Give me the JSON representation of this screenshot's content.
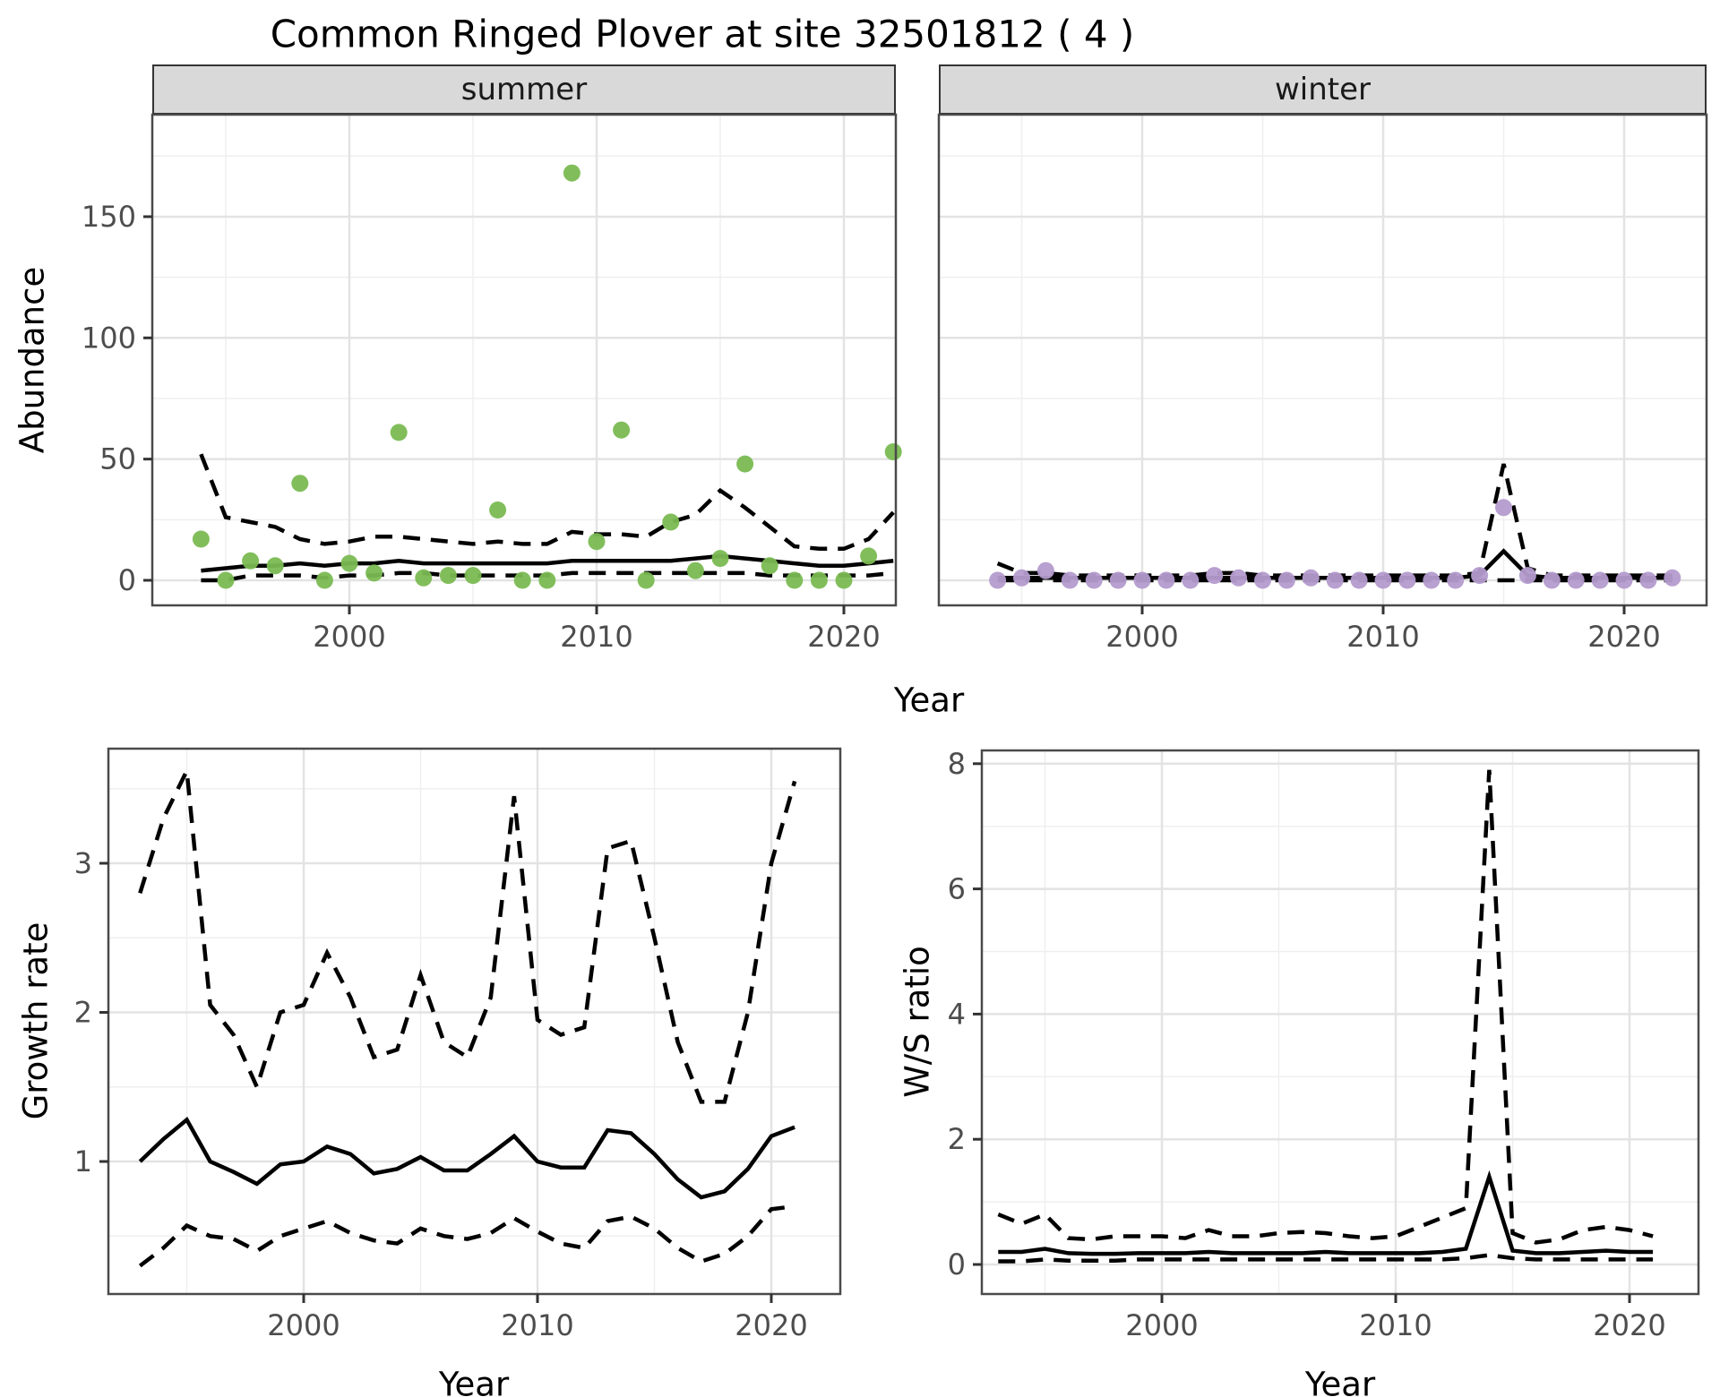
{
  "title": "Common Ringed Plover at site 32501812 ( 4 )",
  "facets": [
    {
      "label": "summer"
    },
    {
      "label": "winter"
    }
  ],
  "axis_titles": {
    "x": "Year",
    "abundance": "Abundance",
    "growth": "Growth rate",
    "ws": "W/S ratio"
  },
  "colors": {
    "summer_point": "#7aba52",
    "winter_point": "#b49bce",
    "line": "#000000",
    "strip_bg": "#d9d9d9",
    "panel_bg": "#ffffff",
    "grid_major": "#e3e3e3",
    "grid_minor": "#efefef",
    "panel_border": "#4a4a4a",
    "axis_text": "#4d4d4d",
    "tick_mark": "#333333"
  },
  "chart_data": [
    {
      "id": "abundance-summer",
      "type": "scatter",
      "facet": "summer",
      "xlabel": "Year",
      "ylabel": "Abundance",
      "x": [
        1994,
        1995,
        1996,
        1997,
        1998,
        1999,
        2000,
        2001,
        2002,
        2003,
        2004,
        2005,
        2006,
        2007,
        2008,
        2009,
        2010,
        2011,
        2012,
        2013,
        2014,
        2015,
        2016,
        2017,
        2018,
        2019,
        2020,
        2021,
        2022
      ],
      "observed": [
        17,
        0,
        8,
        6,
        40,
        0,
        7,
        3,
        61,
        1,
        2,
        2,
        29,
        0,
        0,
        168,
        16,
        62,
        0,
        24,
        4,
        9,
        48,
        6,
        0,
        0,
        0,
        10,
        53
      ],
      "fit": [
        4,
        5,
        6,
        6,
        7,
        6,
        7,
        7,
        8,
        7,
        7,
        7,
        7,
        7,
        7,
        8,
        8,
        8,
        8,
        8,
        9,
        10,
        9,
        8,
        7,
        6,
        6,
        7,
        8
      ],
      "ci_upper": [
        52,
        26,
        24,
        22,
        17,
        15,
        16,
        18,
        18,
        17,
        16,
        15,
        16,
        15,
        15,
        20,
        19,
        19,
        18,
        24,
        27,
        37,
        30,
        22,
        14,
        13,
        13,
        17,
        28
      ],
      "ci_lower": [
        0,
        0,
        2,
        2,
        2,
        1,
        2,
        2,
        3,
        3,
        2,
        2,
        2,
        2,
        2,
        3,
        3,
        3,
        3,
        3,
        3,
        3,
        3,
        2,
        2,
        2,
        2,
        2,
        3
      ],
      "xticks": [
        2000,
        2010,
        2020
      ],
      "xminor": [
        1995,
        2005,
        2015
      ],
      "yticks": [
        0,
        50,
        100,
        150
      ],
      "yminor": [
        25,
        75,
        125,
        175
      ],
      "xlim": [
        1992.0,
        2022.1
      ],
      "ylim": [
        -10.3,
        192.1
      ],
      "grid": true,
      "legend": "none",
      "point_color": "#7aba52",
      "show_y_axis": true
    },
    {
      "id": "abundance-winter",
      "type": "scatter",
      "facet": "winter",
      "xlabel": "Year",
      "ylabel": "Abundance",
      "x": [
        1994,
        1995,
        1996,
        1997,
        1998,
        1999,
        2000,
        2001,
        2002,
        2003,
        2004,
        2005,
        2006,
        2007,
        2008,
        2009,
        2010,
        2011,
        2012,
        2013,
        2014,
        2015,
        2016,
        2017,
        2018,
        2019,
        2020,
        2021,
        2022
      ],
      "observed": [
        0,
        1,
        4,
        0,
        0,
        0,
        0,
        0,
        0,
        2,
        1,
        0,
        0,
        1,
        0,
        0,
        0,
        0,
        0,
        0,
        2,
        30,
        2,
        0,
        0,
        0,
        0,
        0,
        1
      ],
      "fit": [
        1,
        1,
        1,
        1,
        1,
        1,
        1,
        1,
        1,
        1,
        1,
        1,
        1,
        1,
        1,
        1,
        1,
        1,
        1,
        1,
        2,
        12,
        2,
        1,
        1,
        1,
        1,
        1,
        1
      ],
      "ci_upper": [
        7,
        3,
        3,
        2,
        2,
        2,
        2,
        2,
        2,
        3,
        3,
        2,
        2,
        2,
        2,
        2,
        2,
        2,
        2,
        2,
        3,
        48,
        5,
        2,
        2,
        2,
        2,
        2,
        2
      ],
      "ci_lower": [
        0,
        0,
        0,
        0,
        0,
        0,
        0,
        0,
        0,
        0,
        0,
        0,
        0,
        0,
        0,
        0,
        0,
        0,
        0,
        0,
        0,
        0,
        0,
        0,
        0,
        0,
        0,
        0,
        0
      ],
      "xticks": [
        2000,
        2010,
        2020
      ],
      "xminor": [
        1995,
        2005,
        2015
      ],
      "yticks": [
        0,
        50,
        100,
        150
      ],
      "yminor": [
        25,
        75,
        125,
        175
      ],
      "xlim": [
        1991.6,
        2023.4
      ],
      "ylim": [
        -10.3,
        192.1
      ],
      "grid": true,
      "legend": "none",
      "point_color": "#b49bce",
      "show_y_axis": false
    },
    {
      "id": "growth-rate",
      "type": "line",
      "facet": null,
      "xlabel": "Year",
      "ylabel": "Growth rate",
      "x": [
        1993,
        1994,
        1995,
        1996,
        1997,
        1998,
        1999,
        2000,
        2001,
        2002,
        2003,
        2004,
        2005,
        2006,
        2007,
        2008,
        2009,
        2010,
        2011,
        2012,
        2013,
        2014,
        2015,
        2016,
        2017,
        2018,
        2019,
        2020,
        2021
      ],
      "fit": [
        1.0,
        1.15,
        1.28,
        1.0,
        0.93,
        0.85,
        0.98,
        1.0,
        1.1,
        1.05,
        0.92,
        0.95,
        1.03,
        0.94,
        0.94,
        1.05,
        1.17,
        1.0,
        0.96,
        0.96,
        1.21,
        1.19,
        1.05,
        0.88,
        0.76,
        0.8,
        0.95,
        1.17,
        1.23
      ],
      "ci_upper": [
        2.8,
        3.3,
        3.62,
        2.05,
        1.85,
        1.5,
        2.0,
        2.05,
        2.4,
        2.1,
        1.7,
        1.75,
        2.25,
        1.8,
        1.7,
        2.1,
        3.45,
        1.95,
        1.85,
        1.9,
        3.1,
        3.15,
        2.5,
        1.8,
        1.4,
        1.4,
        2.0,
        3.0,
        3.55
      ],
      "ci_lower": [
        0.3,
        0.42,
        0.57,
        0.5,
        0.48,
        0.4,
        0.5,
        0.55,
        0.6,
        0.52,
        0.47,
        0.45,
        0.55,
        0.5,
        0.48,
        0.52,
        0.62,
        0.53,
        0.45,
        0.42,
        0.6,
        0.63,
        0.55,
        0.42,
        0.33,
        0.38,
        0.5,
        0.68,
        0.7
      ],
      "xticks": [
        2000,
        2010,
        2020
      ],
      "xminor": [
        1995,
        2005,
        2015
      ],
      "yticks": [
        1,
        2,
        3
      ],
      "yminor": [
        0.5,
        1.5,
        2.5,
        3.5
      ],
      "xlim": [
        1991.65,
        2022.95
      ],
      "ylim": [
        0.11,
        3.77
      ],
      "grid": true,
      "legend": "none",
      "show_y_axis": true
    },
    {
      "id": "ws-ratio",
      "type": "line",
      "facet": null,
      "xlabel": "Year",
      "ylabel": "W/S ratio",
      "x": [
        1993,
        1994,
        1995,
        1996,
        1997,
        1998,
        1999,
        2000,
        2001,
        2002,
        2003,
        2004,
        2005,
        2006,
        2007,
        2008,
        2009,
        2010,
        2011,
        2012,
        2013,
        2014,
        2015,
        2016,
        2017,
        2018,
        2019,
        2020,
        2021
      ],
      "fit": [
        0.2,
        0.2,
        0.25,
        0.18,
        0.17,
        0.17,
        0.18,
        0.18,
        0.18,
        0.2,
        0.18,
        0.18,
        0.18,
        0.18,
        0.2,
        0.18,
        0.18,
        0.18,
        0.18,
        0.2,
        0.25,
        1.4,
        0.22,
        0.18,
        0.18,
        0.2,
        0.22,
        0.2,
        0.2
      ],
      "ci_upper": [
        0.8,
        0.65,
        0.8,
        0.42,
        0.4,
        0.45,
        0.45,
        0.45,
        0.42,
        0.55,
        0.45,
        0.45,
        0.5,
        0.52,
        0.5,
        0.45,
        0.42,
        0.45,
        0.6,
        0.75,
        0.9,
        7.9,
        0.5,
        0.35,
        0.4,
        0.55,
        0.6,
        0.55,
        0.45
      ],
      "ci_lower": [
        0.05,
        0.05,
        0.08,
        0.06,
        0.06,
        0.06,
        0.08,
        0.08,
        0.08,
        0.08,
        0.08,
        0.08,
        0.08,
        0.08,
        0.08,
        0.08,
        0.08,
        0.08,
        0.08,
        0.08,
        0.1,
        0.15,
        0.1,
        0.08,
        0.08,
        0.08,
        0.08,
        0.08,
        0.08
      ],
      "xticks": [
        2000,
        2010,
        2020
      ],
      "xminor": [
        1995,
        2005,
        2015
      ],
      "yticks": [
        0,
        2,
        4,
        6,
        8
      ],
      "yminor": [
        1,
        3,
        5,
        7
      ],
      "xlim": [
        1992.3,
        2022.95
      ],
      "ylim": [
        -0.47,
        8.21
      ],
      "grid": true,
      "legend": "none",
      "show_y_axis": true
    }
  ]
}
